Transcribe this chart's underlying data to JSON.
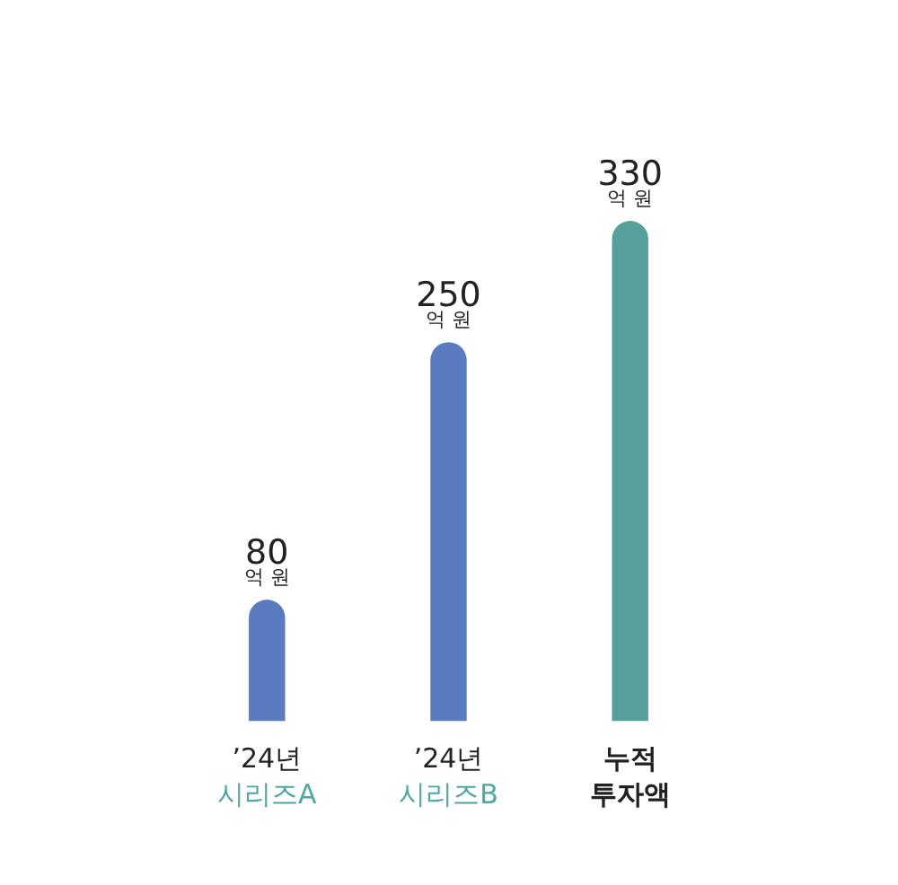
{
  "chart_data": {
    "type": "bar",
    "categories": [
      "’24년\n시리즈A",
      "’24년\n시리즈B",
      "누적\n투자액"
    ],
    "values": [
      80,
      250,
      330
    ],
    "colors": [
      "#5b7bc0",
      "#5b7bc0",
      "#56a09c"
    ],
    "value_labels": [
      "80\n억 원",
      "250\n억 원",
      "330\n억 원"
    ]
  }
}
